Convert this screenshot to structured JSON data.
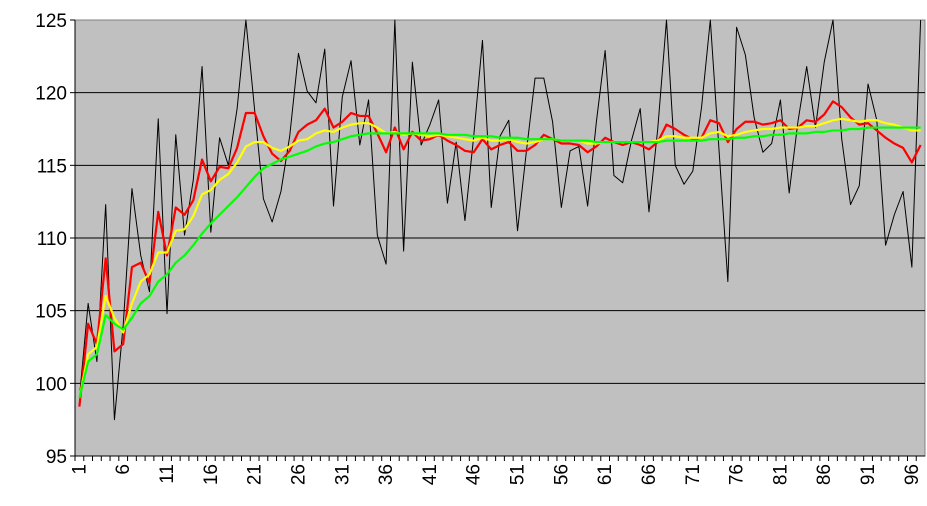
{
  "chart_data": {
    "type": "line",
    "title": "",
    "xlabel": "",
    "ylabel": "",
    "ylim": [
      95,
      125
    ],
    "yticks": [
      "95",
      "100",
      "105",
      "110",
      "115",
      "120",
      "125"
    ],
    "x_tick_labels": [
      "1",
      "6",
      "11",
      "16",
      "21",
      "26",
      "31",
      "36",
      "41",
      "46",
      "51",
      "56",
      "61",
      "66",
      "71",
      "76",
      "81",
      "86",
      "91",
      "96"
    ],
    "grid": "horizontal",
    "legend": "none",
    "plot_background": "#c0c0c0",
    "series": [
      {
        "color": "#000000",
        "values": [
          99.0,
          105.5,
          101.5,
          112.3,
          97.5,
          104.0,
          113.4,
          108.8,
          106.3,
          118.2,
          104.8,
          117.1,
          110.2,
          114.0,
          121.8,
          110.4,
          116.9,
          115.0,
          118.9,
          125.5,
          118.8,
          112.7,
          111.1,
          113.2,
          117.0,
          122.7,
          120.1,
          119.3,
          123.0,
          112.2,
          119.7,
          122.2,
          116.4,
          119.5,
          110.2,
          108.2,
          125.5,
          109.1,
          122.1,
          116.4,
          117.8,
          119.5,
          112.4,
          116.6,
          111.2,
          117.0,
          123.6,
          112.1,
          117.0,
          118.1,
          110.5,
          115.9,
          121.0,
          121.0,
          118.0,
          112.1,
          116.0,
          116.3,
          112.2,
          118.0,
          122.9,
          114.3,
          113.8,
          116.7,
          118.9,
          111.8,
          117.5,
          126.0,
          115.0,
          113.7,
          114.6,
          119.0,
          126.0,
          116.0,
          107.0,
          124.5,
          122.6,
          118.3,
          115.9,
          116.5,
          119.5,
          113.1,
          118.0,
          121.8,
          117.6,
          122.1,
          125.8,
          116.8,
          112.3,
          113.6,
          120.6,
          118.1,
          109.5,
          111.6,
          113.2,
          108.0,
          125.5
        ]
      },
      {
        "color": "#ff0000",
        "values": [
          98.4,
          104.1,
          102.7,
          108.6,
          102.2,
          102.7,
          108.0,
          108.3,
          106.9,
          111.8,
          108.8,
          112.1,
          111.6,
          112.6,
          115.4,
          113.9,
          114.9,
          114.8,
          116.2,
          118.6,
          118.6,
          117.0,
          115.8,
          115.3,
          116.0,
          117.3,
          117.8,
          118.1,
          118.9,
          117.6,
          118.0,
          118.6,
          118.4,
          118.4,
          117.2,
          115.9,
          117.6,
          116.1,
          117.3,
          116.7,
          116.8,
          117.1,
          116.7,
          116.4,
          116.0,
          115.9,
          116.8,
          116.1,
          116.4,
          116.6,
          116.0,
          116.0,
          116.4,
          117.1,
          116.8,
          116.5,
          116.5,
          116.4,
          115.9,
          116.3,
          116.9,
          116.6,
          116.4,
          116.6,
          116.4,
          116.1,
          116.6,
          117.8,
          117.5,
          117.1,
          116.8,
          116.9,
          118.1,
          117.9,
          116.6,
          117.5,
          118.0,
          118.0,
          117.8,
          117.9,
          118.1,
          117.5,
          117.6,
          118.1,
          118.0,
          118.5,
          119.4,
          119.0,
          118.3,
          117.8,
          117.9,
          117.4,
          116.9,
          116.5,
          116.2,
          115.2,
          116.4
        ]
      },
      {
        "color": "#ffff00",
        "values": [
          99.0,
          102.0,
          102.5,
          106.0,
          104.5,
          103.5,
          105.5,
          107.0,
          107.5,
          109.0,
          109.0,
          110.5,
          110.6,
          111.5,
          113.0,
          113.3,
          114.0,
          114.4,
          115.2,
          116.3,
          116.6,
          116.6,
          116.2,
          116.0,
          116.3,
          116.7,
          116.8,
          117.2,
          117.4,
          117.3,
          117.6,
          117.8,
          117.9,
          117.9,
          117.6,
          117.2,
          117.3,
          117.1,
          117.2,
          117.1,
          117.0,
          117.1,
          117.0,
          116.9,
          116.8,
          116.7,
          116.9,
          116.7,
          116.7,
          116.8,
          116.6,
          116.5,
          116.6,
          116.8,
          116.8,
          116.7,
          116.7,
          116.7,
          116.5,
          116.5,
          116.6,
          116.6,
          116.6,
          116.6,
          116.6,
          116.6,
          116.7,
          117.0,
          117.0,
          116.9,
          116.9,
          116.9,
          117.2,
          117.3,
          117.0,
          117.1,
          117.3,
          117.4,
          117.5,
          117.5,
          117.6,
          117.6,
          117.6,
          117.7,
          117.7,
          117.9,
          118.1,
          118.2,
          118.1,
          118.0,
          118.1,
          118.1,
          117.9,
          117.8,
          117.6,
          117.4,
          117.4
        ]
      },
      {
        "color": "#00ff00",
        "values": [
          99.0,
          101.5,
          102.0,
          104.7,
          104.1,
          103.7,
          104.5,
          105.5,
          106.0,
          107.0,
          107.5,
          108.3,
          108.8,
          109.5,
          110.3,
          111.0,
          111.6,
          112.2,
          112.8,
          113.5,
          114.2,
          114.8,
          115.1,
          115.4,
          115.6,
          115.8,
          116.0,
          116.3,
          116.5,
          116.6,
          116.8,
          117.0,
          117.1,
          117.2,
          117.2,
          117.2,
          117.2,
          117.2,
          117.2,
          117.2,
          117.2,
          117.2,
          117.1,
          117.1,
          117.1,
          117.0,
          117.0,
          117.0,
          116.9,
          116.9,
          116.9,
          116.8,
          116.8,
          116.8,
          116.8,
          116.7,
          116.7,
          116.7,
          116.7,
          116.6,
          116.6,
          116.6,
          116.6,
          116.6,
          116.6,
          116.6,
          116.6,
          116.7,
          116.7,
          116.7,
          116.7,
          116.7,
          116.8,
          116.8,
          116.8,
          116.9,
          116.9,
          117.0,
          117.0,
          117.1,
          117.1,
          117.2,
          117.2,
          117.2,
          117.3,
          117.3,
          117.4,
          117.4,
          117.5,
          117.5,
          117.6,
          117.6,
          117.6,
          117.6,
          117.6,
          117.6,
          117.6
        ]
      }
    ]
  }
}
